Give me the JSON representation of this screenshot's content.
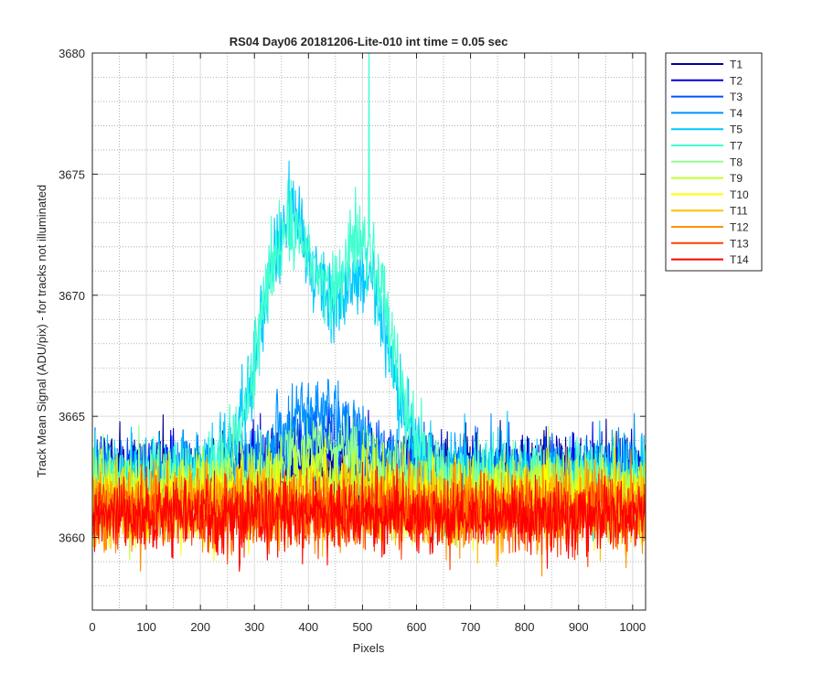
{
  "chart_data": {
    "type": "line",
    "title": "RS04 Day06 20181206-Lite-010 int time = 0.05 sec",
    "xlabel": "Pixels",
    "ylabel": "Track Mean Signal (ADU/pix) - for tracks not illuminated",
    "xlim": [
      0,
      1024
    ],
    "ylim": [
      3657,
      3680
    ],
    "xticks": [
      0,
      100,
      200,
      300,
      400,
      500,
      600,
      700,
      800,
      900,
      1000
    ],
    "yticks": [
      3660,
      3665,
      3670,
      3675,
      3680
    ],
    "grid": "major-solid-minor-dotted",
    "legend_position": "outside-top-right",
    "series": [
      {
        "name": "T1",
        "color": "#00008f",
        "baseline": 3662.7,
        "noise": 0.75,
        "peaks": []
      },
      {
        "name": "T2",
        "color": "#0000dd",
        "baseline": 3662.6,
        "noise": 0.75,
        "peaks": [
          {
            "center": 430,
            "width": 110,
            "height": 1.0
          }
        ]
      },
      {
        "name": "T3",
        "color": "#0050ff",
        "baseline": 3662.6,
        "noise": 0.75,
        "peaks": [
          {
            "center": 430,
            "width": 110,
            "height": 1.5
          }
        ]
      },
      {
        "name": "T4",
        "color": "#0090ff",
        "baseline": 3662.5,
        "noise": 0.8,
        "peaks": [
          {
            "center": 420,
            "width": 105,
            "height": 2.8
          }
        ]
      },
      {
        "name": "T5",
        "color": "#00c8ff",
        "baseline": 3662.5,
        "noise": 0.85,
        "peaks": [
          {
            "center": 365,
            "width": 75,
            "height": 10.5
          },
          {
            "center": 505,
            "width": 70,
            "height": 8.0
          }
        ]
      },
      {
        "name": "T7",
        "color": "#40ffd0",
        "baseline": 3662.3,
        "noise": 0.85,
        "peaks": [
          {
            "center": 365,
            "width": 78,
            "height": 10.3
          },
          {
            "center": 505,
            "width": 72,
            "height": 9.3
          }
        ],
        "spike": {
          "x": 512,
          "y": 3680
        }
      },
      {
        "name": "T8",
        "color": "#90ff90",
        "baseline": 3662.0,
        "noise": 0.8,
        "peaks": [
          {
            "center": 430,
            "width": 120,
            "height": 1.6
          }
        ]
      },
      {
        "name": "T9",
        "color": "#c0ff30",
        "baseline": 3661.8,
        "noise": 0.8,
        "peaks": [
          {
            "center": 430,
            "width": 120,
            "height": 0.8
          }
        ]
      },
      {
        "name": "T10",
        "color": "#ffff00",
        "baseline": 3661.6,
        "noise": 0.8,
        "peaks": []
      },
      {
        "name": "T11",
        "color": "#ffc000",
        "baseline": 3661.4,
        "noise": 0.8,
        "peaks": []
      },
      {
        "name": "T12",
        "color": "#ff9000",
        "baseline": 3661.2,
        "noise": 0.8,
        "peaks": []
      },
      {
        "name": "T13",
        "color": "#ff4000",
        "baseline": 3661.0,
        "noise": 0.75,
        "peaks": []
      },
      {
        "name": "T14",
        "color": "#ff0000",
        "baseline": 3660.9,
        "noise": 0.7,
        "peaks": []
      }
    ]
  }
}
